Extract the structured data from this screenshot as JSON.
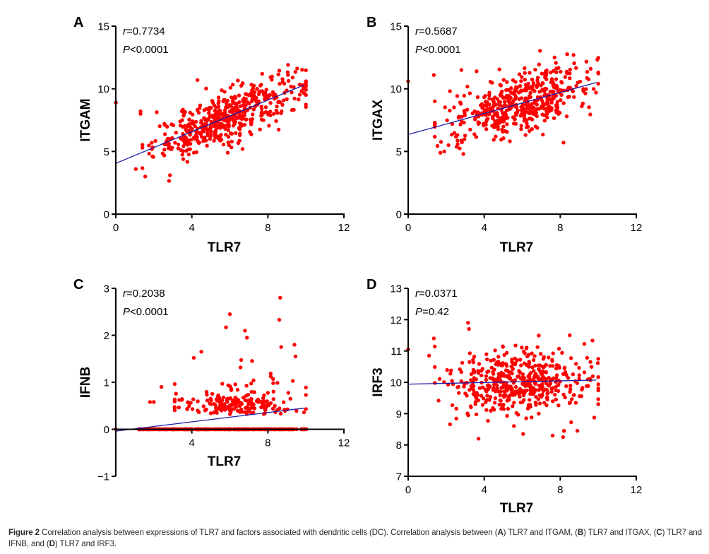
{
  "figure": {
    "caption": {
      "label": "Figure 2",
      "text_parts": [
        " Correlation analysis between expressions of TLR7 and factors associated with dendritic cells (DC). Correlation analysis between (",
        "A",
        ") TLR7 and ITGAM, (",
        "B",
        ") TLR7 and ITGAX, (",
        "C",
        ") TLR7 and IFNB, and (",
        "D",
        ") TLR7 and IRF3."
      ]
    },
    "colors": {
      "points": "#ff0000",
      "fit_line": "#1a1aa6",
      "axis": "#000000",
      "text": "#000000"
    }
  },
  "chart_data": [
    {
      "panel": "A",
      "type": "scatter",
      "title": "",
      "xlabel": "TLR7",
      "ylabel": "ITGAM",
      "xlim": [
        0,
        12
      ],
      "ylim": [
        0,
        15
      ],
      "xticks": [
        0,
        4,
        8,
        12
      ],
      "yticks": [
        0,
        5,
        10,
        15
      ],
      "annotation": {
        "r_label": "r",
        "r_value": "=0.7734",
        "p_label": "P",
        "p_value": "<0.0001"
      },
      "fit_line": {
        "x": [
          0,
          9.9
        ],
        "y": [
          4.05,
          10.3
        ]
      },
      "grid": false,
      "n_points": 480,
      "distribution": {
        "x_mean": 5.8,
        "x_sd": 1.9,
        "slope": 0.63,
        "intercept": 4.05,
        "resid_sd": 1.0
      },
      "notable_points": [
        [
          0,
          8.9
        ],
        [
          1.05,
          3.6
        ],
        [
          1.3,
          8.2
        ],
        [
          1.3,
          8.0
        ],
        [
          1.55,
          3.0
        ],
        [
          2.8,
          2.65
        ],
        [
          2.85,
          3.1
        ],
        [
          4.3,
          10.7
        ],
        [
          7.7,
          11.2
        ],
        [
          8.6,
          11.45
        ],
        [
          9.3,
          10.9
        ],
        [
          10.0,
          10.6
        ],
        [
          9.9,
          9.65
        ]
      ]
    },
    {
      "panel": "B",
      "type": "scatter",
      "title": "",
      "xlabel": "TLR7",
      "ylabel": "ITGAX",
      "xlim": [
        0,
        12
      ],
      "ylim": [
        0,
        15
      ],
      "xticks": [
        0,
        4,
        8,
        12
      ],
      "yticks": [
        0,
        5,
        10,
        15
      ],
      "annotation": {
        "r_label": "r",
        "r_value": "=0.5687",
        "p_label": "P",
        "p_value": "<0.0001"
      },
      "fit_line": {
        "x": [
          0,
          9.9
        ],
        "y": [
          6.35,
          10.5
        ]
      },
      "grid": false,
      "n_points": 480,
      "distribution": {
        "x_mean": 5.8,
        "x_sd": 1.9,
        "slope": 0.42,
        "intercept": 6.35,
        "resid_sd": 1.15
      },
      "notable_points": [
        [
          0,
          10.6
        ],
        [
          1.35,
          11.1
        ],
        [
          1.9,
          5.0
        ],
        [
          2.9,
          4.8
        ],
        [
          2.8,
          11.5
        ],
        [
          3.6,
          11.4
        ],
        [
          4.8,
          11.55
        ],
        [
          7.7,
          12.5
        ],
        [
          8.7,
          12.7
        ],
        [
          9.6,
          11.6
        ],
        [
          10.0,
          11.3
        ]
      ]
    },
    {
      "panel": "C",
      "type": "scatter",
      "title": "",
      "xlabel": "TLR7",
      "ylabel": "IFNB",
      "xlim": [
        0,
        12
      ],
      "ylim": [
        -1,
        3
      ],
      "xticks": [
        4,
        8,
        12
      ],
      "yticks": [
        -1,
        0,
        1,
        2,
        3
      ],
      "annotation": {
        "r_label": "r",
        "r_value": "=0.2038",
        "p_label": "P",
        "p_value": "<0.0001"
      },
      "fit_line": {
        "x": [
          0,
          9.9
        ],
        "y": [
          -0.04,
          0.45
        ]
      },
      "grid": false,
      "n_points": 520,
      "zero_fraction": 0.6,
      "notable_points": [
        [
          0,
          0
        ],
        [
          1.8,
          0.58
        ],
        [
          2.0,
          0.58
        ],
        [
          2.4,
          0.9
        ],
        [
          4.1,
          1.52
        ],
        [
          4.5,
          1.65
        ],
        [
          5.8,
          2.17
        ],
        [
          6.0,
          2.45
        ],
        [
          6.8,
          2.1
        ],
        [
          6.9,
          1.95
        ],
        [
          8.6,
          2.33
        ],
        [
          8.65,
          2.8
        ],
        [
          8.7,
          1.75
        ],
        [
          9.4,
          1.8
        ],
        [
          9.45,
          1.55
        ],
        [
          10.0,
          0.43
        ],
        [
          9.9,
          0.36
        ]
      ]
    },
    {
      "panel": "D",
      "type": "scatter",
      "title": "",
      "xlabel": "TLR7",
      "ylabel": "IRF3",
      "xlim": [
        0,
        12
      ],
      "ylim": [
        7,
        13
      ],
      "xticks": [
        0,
        4,
        8,
        12
      ],
      "yticks": [
        7,
        8,
        9,
        10,
        11,
        12,
        13
      ],
      "annotation": {
        "r_label": "r",
        "r_value": "=0.0371",
        "p_label": "P",
        "p_value": "=0.42"
      },
      "fit_line": {
        "x": [
          0,
          9.9
        ],
        "y": [
          9.94,
          10.07
        ]
      },
      "grid": false,
      "n_points": 480,
      "distribution": {
        "x_mean": 5.8,
        "x_sd": 1.9,
        "slope": 0.013,
        "intercept": 9.94,
        "resid_sd": 0.55
      },
      "notable_points": [
        [
          0,
          11.05
        ],
        [
          1.1,
          10.85
        ],
        [
          1.35,
          11.4
        ],
        [
          3.15,
          11.9
        ],
        [
          3.2,
          11.7
        ],
        [
          3.7,
          8.2
        ],
        [
          6.05,
          8.35
        ],
        [
          7.6,
          8.3
        ],
        [
          8.15,
          8.25
        ],
        [
          8.2,
          8.45
        ],
        [
          8.9,
          8.45
        ],
        [
          8.5,
          11.5
        ],
        [
          10.0,
          10.75
        ]
      ]
    }
  ]
}
